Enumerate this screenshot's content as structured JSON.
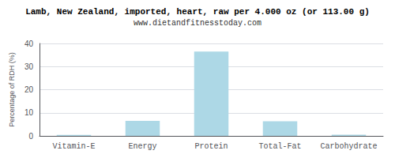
{
  "chart_data": {
    "type": "bar",
    "title": "Lamb, New Zealand, imported, heart, raw per 4.000 oz (or 113.00 g)",
    "subtitle": "www.dietandfitnesstoday.com",
    "categories": [
      "Vitamin-E",
      "Energy",
      "Protein",
      "Total-Fat",
      "Carbohydrate"
    ],
    "values": [
      0.4,
      6.5,
      36.5,
      6.3,
      0.5
    ],
    "color": "#add8e6",
    "ylabel": "Percentage of RDH (%)",
    "ylim": [
      0,
      40
    ],
    "yticks": [
      0,
      10,
      20,
      30,
      40
    ],
    "grid": true
  }
}
